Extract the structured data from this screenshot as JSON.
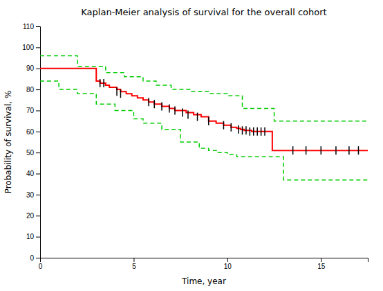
{
  "chart_data": {
    "type": "step",
    "title": "Kaplan-Meier analysis of survival for the overall cohort",
    "x_label": "Time, year",
    "y_label": "Probability of survival, %",
    "xlim": [
      0,
      17.5
    ],
    "ylim": [
      0,
      110
    ],
    "xticks": [
      0,
      5,
      10,
      15
    ],
    "yticks": [
      0,
      10,
      20,
      30,
      40,
      50,
      60,
      70,
      80,
      90,
      100,
      110
    ],
    "grid": false,
    "series": [
      {
        "type": "line",
        "line_style": "solid",
        "color": "#FF0000",
        "x": [
          0,
          0.05,
          3.0,
          3.2,
          3.5,
          3.7,
          4.1,
          4.3,
          4.6,
          4.9,
          5.2,
          5.5,
          5.8,
          6.1,
          6.5,
          6.9,
          7.2,
          7.5,
          7.8,
          8.2,
          8.6,
          9.0,
          9.4,
          9.8,
          10.2,
          10.5,
          10.7,
          10.9,
          11.1,
          11.3,
          11.5,
          11.7,
          11.9,
          12.1,
          12.4,
          12.7,
          13.0,
          17.5
        ],
        "values": [
          90,
          90,
          84,
          83,
          82,
          81,
          80,
          79,
          78,
          77,
          76,
          75,
          74,
          73,
          72,
          71,
          70,
          70,
          69,
          68,
          67,
          65,
          64,
          63,
          62,
          61.5,
          61,
          60.5,
          60.5,
          60,
          60,
          60,
          60,
          60,
          51,
          51,
          51,
          51
        ]
      },
      {
        "type": "line",
        "line_style": "dashed",
        "color": "#00CC00",
        "x": [
          0,
          0.05,
          2.0,
          3.5,
          4.5,
          5.5,
          6.2,
          7.0,
          8.0,
          9.0,
          10.0,
          10.8,
          12.5,
          17.5
        ],
        "values": [
          96,
          96,
          91,
          88,
          86,
          84,
          82,
          80,
          79,
          78,
          77,
          71,
          65,
          65
        ]
      },
      {
        "type": "line",
        "line_style": "dashed",
        "color": "#00CC00",
        "x": [
          0,
          0.05,
          1.0,
          2.0,
          3.0,
          4.0,
          5.0,
          5.5,
          6.5,
          7.5,
          8.5,
          9.0,
          9.5,
          10.0,
          10.5,
          12.5,
          13.0,
          17.5
        ],
        "values": [
          84,
          84,
          80,
          78,
          73,
          70,
          66,
          64,
          61,
          55,
          52,
          51,
          50,
          49,
          48,
          48,
          37,
          37
        ]
      },
      {
        "type": "scatter",
        "marker": "tick",
        "color": "#000000",
        "x": [
          3.2,
          3.4,
          4.1,
          4.3,
          5.8,
          6.1,
          6.5,
          6.9,
          7.2,
          7.6,
          7.9,
          8.4,
          9.0,
          9.8,
          10.2,
          10.6,
          10.8,
          11.0,
          11.2,
          11.4,
          11.6,
          11.8,
          12.0,
          13.5,
          14.2,
          15.0,
          15.8,
          16.5,
          17.0
        ],
        "values": [
          83,
          83,
          79,
          78,
          74,
          73,
          72,
          71,
          70,
          69,
          68,
          67,
          65,
          63,
          62,
          61,
          60.5,
          60.5,
          60,
          60,
          60,
          60,
          60,
          51,
          51,
          51,
          51,
          51,
          51
        ]
      }
    ]
  }
}
